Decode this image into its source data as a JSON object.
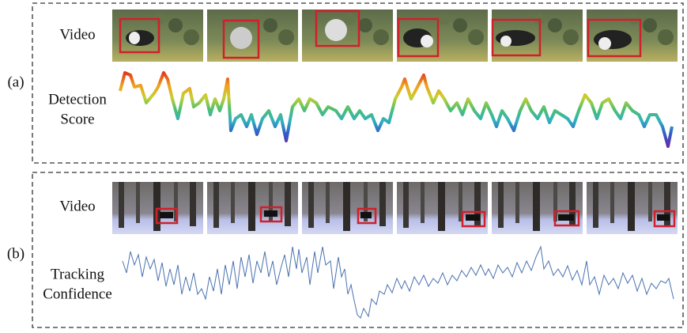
{
  "panel_a": {
    "label": "(a)",
    "row_label": "Video",
    "curve_label_1": "Detection",
    "curve_label_2": "Score"
  },
  "panel_b": {
    "label": "(b)",
    "row_label": "Video",
    "curve_label_1": "Tracking",
    "curve_label_2": "Confidence"
  }
}
